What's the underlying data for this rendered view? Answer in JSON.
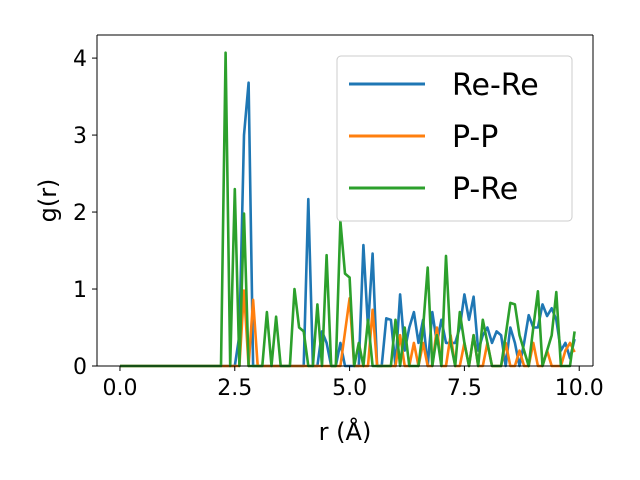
{
  "chart_data": {
    "type": "line",
    "xlabel": "r (Å)",
    "ylabel": "g(r)",
    "xlim": [
      -0.5,
      10.3
    ],
    "ylim": [
      0,
      4.3
    ],
    "xticks": [
      "0.0",
      "2.5",
      "5.0",
      "7.5",
      "10.0"
    ],
    "xtick_values": [
      0,
      2.5,
      5.0,
      7.5,
      10.0
    ],
    "yticks": [
      "0",
      "1",
      "2",
      "3",
      "4"
    ],
    "ytick_values": [
      0,
      1,
      2,
      3,
      4
    ],
    "grid": false,
    "legend_position": "top-right",
    "series": [
      {
        "name": "Re-Re",
        "color": "#1f77b4",
        "x": [
          0.0,
          2.2,
          2.4,
          2.5,
          2.6,
          2.7,
          2.8,
          2.9,
          3.0,
          3.5,
          3.9,
          4.0,
          4.1,
          4.2,
          4.3,
          4.4,
          4.5,
          4.6,
          4.7,
          4.8,
          4.9,
          5.0,
          5.1,
          5.2,
          5.3,
          5.4,
          5.5,
          5.6,
          5.7,
          5.8,
          5.9,
          6.0,
          6.1,
          6.2,
          6.3,
          6.4,
          6.5,
          6.6,
          6.7,
          6.8,
          6.9,
          7.0,
          7.1,
          7.2,
          7.3,
          7.4,
          7.5,
          7.6,
          7.7,
          7.8,
          7.9,
          8.0,
          8.1,
          8.2,
          8.3,
          8.4,
          8.5,
          8.6,
          8.7,
          8.8,
          8.9,
          9.0,
          9.1,
          9.2,
          9.3,
          9.4,
          9.5,
          9.6,
          9.7,
          9.8,
          9.9
        ],
        "y": [
          0.0,
          0.0,
          0.0,
          0.0,
          0.4,
          3.0,
          3.68,
          0.0,
          0.0,
          0.0,
          0.0,
          0.0,
          2.17,
          0.0,
          0.0,
          0.45,
          0.3,
          0.0,
          0.0,
          0.3,
          0.0,
          0.0,
          0.0,
          0.0,
          1.57,
          0.5,
          1.46,
          0.0,
          0.0,
          0.62,
          0.6,
          0.0,
          0.93,
          0.2,
          0.5,
          0.7,
          0.3,
          0.6,
          0.0,
          0.7,
          0.3,
          0.6,
          0.3,
          0.3,
          0.3,
          0.5,
          0.93,
          0.6,
          0.9,
          0.2,
          0.4,
          0.5,
          0.3,
          0.45,
          0.4,
          0.0,
          0.5,
          0.3,
          0.0,
          0.3,
          0.66,
          0.5,
          0.5,
          0.8,
          0.65,
          0.75,
          0.6,
          0.2,
          0.3,
          0.1,
          0.35
        ]
      },
      {
        "name": "P-P",
        "color": "#ff7f0e",
        "x": [
          0.0,
          2.5,
          2.6,
          2.7,
          2.8,
          2.9,
          3.0,
          4.5,
          4.8,
          5.0,
          5.1,
          5.2,
          5.3,
          5.4,
          5.5,
          5.6,
          5.7,
          5.8,
          5.9,
          6.0,
          6.1,
          6.2,
          6.3,
          6.4,
          6.5,
          6.6,
          6.7,
          6.8,
          6.9,
          7.0,
          7.1,
          7.2,
          7.3,
          7.4,
          7.5,
          7.6,
          7.7,
          7.8,
          7.9,
          8.0,
          8.1,
          8.2,
          8.3,
          8.4,
          8.5,
          8.6,
          8.7,
          8.8,
          8.9,
          9.0,
          9.1,
          9.2,
          9.3,
          9.4,
          9.5,
          9.6,
          9.7,
          9.8,
          9.9
        ],
        "y": [
          0.0,
          0.0,
          0.0,
          0.98,
          0.0,
          0.86,
          0.0,
          0.0,
          0.0,
          0.88,
          0.0,
          0.0,
          0.0,
          0.0,
          0.73,
          0.0,
          0.0,
          0.0,
          0.0,
          0.0,
          0.4,
          0.0,
          0.0,
          0.3,
          0.0,
          0.3,
          0.0,
          0.0,
          0.5,
          0.0,
          0.0,
          0.4,
          0.0,
          0.0,
          0.3,
          0.0,
          0.4,
          0.0,
          0.0,
          0.3,
          0.0,
          0.0,
          0.0,
          0.3,
          0.0,
          0.0,
          0.2,
          0.0,
          0.0,
          0.3,
          0.0,
          0.0,
          0.2,
          0.0,
          0.0,
          0.0,
          0.2,
          0.3,
          0.18
        ]
      },
      {
        "name": "P-Re",
        "color": "#2ca02c",
        "x": [
          0.0,
          2.2,
          2.3,
          2.4,
          2.5,
          2.6,
          2.7,
          2.8,
          2.9,
          3.0,
          3.1,
          3.2,
          3.3,
          3.4,
          3.5,
          3.6,
          3.7,
          3.8,
          3.9,
          4.0,
          4.1,
          4.2,
          4.3,
          4.4,
          4.5,
          4.6,
          4.7,
          4.8,
          4.9,
          5.0,
          5.1,
          5.2,
          5.3,
          5.4,
          5.5,
          5.6,
          5.7,
          5.8,
          5.9,
          6.0,
          6.1,
          6.2,
          6.3,
          6.4,
          6.5,
          6.6,
          6.7,
          6.8,
          6.9,
          7.0,
          7.1,
          7.2,
          7.3,
          7.4,
          7.5,
          7.6,
          7.7,
          7.8,
          7.9,
          8.0,
          8.1,
          8.2,
          8.3,
          8.4,
          8.5,
          8.6,
          8.7,
          8.8,
          8.9,
          9.0,
          9.1,
          9.2,
          9.3,
          9.4,
          9.5,
          9.6,
          9.7,
          9.8,
          9.9
        ],
        "y": [
          0.0,
          0.0,
          4.07,
          0.0,
          2.3,
          0.0,
          1.98,
          0.0,
          0.0,
          0.0,
          0.0,
          0.7,
          0.0,
          0.64,
          0.0,
          0.0,
          0.0,
          1.0,
          0.5,
          0.45,
          0.0,
          0.0,
          0.8,
          0.0,
          1.44,
          0.0,
          0.0,
          1.88,
          1.2,
          1.15,
          0.0,
          0.3,
          0.0,
          0.6,
          0.0,
          0.0,
          0.0,
          0.0,
          0.0,
          0.6,
          0.0,
          0.5,
          0.0,
          0.0,
          0.0,
          0.5,
          1.28,
          0.0,
          0.4,
          0.0,
          1.43,
          0.3,
          0.0,
          0.7,
          0.3,
          0.0,
          0.4,
          0.0,
          0.6,
          0.3,
          0.0,
          0.0,
          0.0,
          0.4,
          0.82,
          0.8,
          0.4,
          0.2,
          0.0,
          0.5,
          0.97,
          0.0,
          0.2,
          0.4,
          0.96,
          0.0,
          0.0,
          0.0,
          0.45
        ]
      }
    ]
  }
}
